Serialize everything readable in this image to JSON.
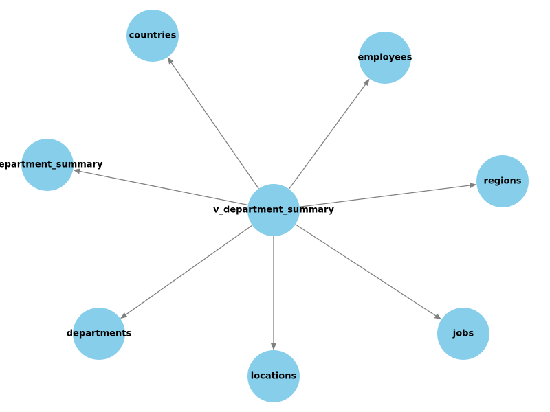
{
  "diagram": {
    "type": "directed-graph",
    "center": {
      "id": "v_department_summary",
      "label": "v_department_summary"
    },
    "nodes": [
      {
        "id": "countries",
        "label": "countries"
      },
      {
        "id": "employees",
        "label": "employees"
      },
      {
        "id": "department_summary",
        "label": "department_summary"
      },
      {
        "id": "regions",
        "label": "regions"
      },
      {
        "id": "departments",
        "label": "departments"
      },
      {
        "id": "locations",
        "label": "locations"
      },
      {
        "id": "jobs",
        "label": "jobs"
      }
    ],
    "edges": [
      {
        "from": "v_department_summary",
        "to": "countries"
      },
      {
        "from": "v_department_summary",
        "to": "employees"
      },
      {
        "from": "v_department_summary",
        "to": "department_summary"
      },
      {
        "from": "v_department_summary",
        "to": "regions"
      },
      {
        "from": "v_department_summary",
        "to": "departments"
      },
      {
        "from": "v_department_summary",
        "to": "locations"
      },
      {
        "from": "v_department_summary",
        "to": "jobs"
      }
    ]
  },
  "colors": {
    "node_fill": "#87ceeb",
    "edge": "#808080",
    "label": "#000000",
    "background": "#ffffff"
  }
}
